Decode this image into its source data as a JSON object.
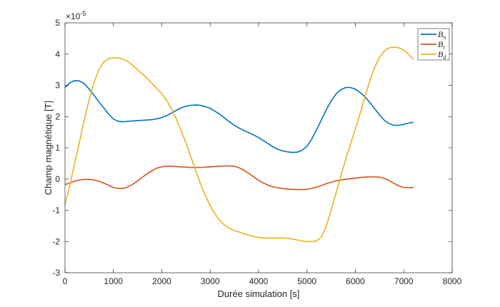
{
  "chart_data": {
    "type": "line",
    "title": "",
    "xlabel": "Durée simulation [s]",
    "ylabel": "Champ magnétique [T]",
    "xlim": [
      0,
      8000
    ],
    "ylim": [
      -3,
      5
    ],
    "y_exponent_label": "×10",
    "y_exponent_power": "-5",
    "x_ticks": [
      0,
      1000,
      2000,
      3000,
      4000,
      5000,
      6000,
      7000,
      8000
    ],
    "y_ticks": [
      -3,
      -2,
      -1,
      0,
      1,
      2,
      3,
      4,
      5
    ],
    "grid": false,
    "legend_position": "top-right",
    "series": [
      {
        "name": "Bn",
        "legend_base": "B",
        "legend_sub": "n",
        "color": "#0072BD",
        "x": [
          0,
          100,
          200,
          300,
          400,
          500,
          600,
          700,
          800,
          900,
          1000,
          1100,
          1200,
          1300,
          1400,
          1500,
          1600,
          1700,
          1800,
          1900,
          2000,
          2100,
          2200,
          2300,
          2400,
          2500,
          2600,
          2700,
          2800,
          2900,
          3000,
          3100,
          3200,
          3300,
          3400,
          3500,
          3600,
          3700,
          3800,
          3900,
          4000,
          4100,
          4200,
          4300,
          4400,
          4500,
          4600,
          4700,
          4800,
          4900,
          5000,
          5100,
          5200,
          5300,
          5400,
          5500,
          5600,
          5700,
          5800,
          5900,
          6000,
          6100,
          6200,
          6300,
          6400,
          6500,
          6600,
          6700,
          6800,
          6900,
          7000,
          7100,
          7200
        ],
        "y": [
          2.93,
          3.08,
          3.15,
          3.14,
          3.05,
          2.88,
          2.68,
          2.47,
          2.28,
          2.08,
          1.92,
          1.85,
          1.83,
          1.85,
          1.86,
          1.87,
          1.88,
          1.89,
          1.9,
          1.93,
          1.97,
          2.03,
          2.11,
          2.2,
          2.28,
          2.33,
          2.36,
          2.37,
          2.36,
          2.32,
          2.26,
          2.17,
          2.07,
          1.95,
          1.83,
          1.72,
          1.63,
          1.55,
          1.48,
          1.41,
          1.33,
          1.23,
          1.13,
          1.03,
          0.95,
          0.9,
          0.87,
          0.85,
          0.86,
          0.92,
          1.05,
          1.28,
          1.58,
          1.9,
          2.22,
          2.5,
          2.72,
          2.86,
          2.93,
          2.93,
          2.88,
          2.77,
          2.63,
          2.45,
          2.25,
          2.05,
          1.88,
          1.77,
          1.72,
          1.72,
          1.75,
          1.79,
          1.82
        ]
      },
      {
        "name": "Bt",
        "legend_base": "B",
        "legend_sub": "t",
        "color": "#D95319",
        "x": [
          0,
          100,
          200,
          300,
          400,
          500,
          600,
          700,
          800,
          900,
          1000,
          1100,
          1200,
          1300,
          1400,
          1500,
          1600,
          1700,
          1800,
          1900,
          2000,
          2100,
          2200,
          2300,
          2400,
          2500,
          2600,
          2700,
          2800,
          2900,
          3000,
          3100,
          3200,
          3300,
          3400,
          3500,
          3600,
          3700,
          3800,
          3900,
          4000,
          4100,
          4200,
          4300,
          4400,
          4500,
          4600,
          4700,
          4800,
          4900,
          5000,
          5100,
          5200,
          5300,
          5400,
          5500,
          5600,
          5700,
          5800,
          5900,
          6000,
          6100,
          6200,
          6300,
          6400,
          6500,
          6600,
          6700,
          6800,
          6900,
          7000,
          7100,
          7200
        ],
        "y": [
          -0.18,
          -0.13,
          -0.07,
          -0.03,
          -0.01,
          -0.01,
          -0.03,
          -0.07,
          -0.13,
          -0.2,
          -0.27,
          -0.3,
          -0.3,
          -0.25,
          -0.17,
          -0.06,
          0.06,
          0.17,
          0.27,
          0.35,
          0.39,
          0.41,
          0.41,
          0.4,
          0.39,
          0.38,
          0.37,
          0.37,
          0.37,
          0.38,
          0.39,
          0.4,
          0.41,
          0.42,
          0.42,
          0.41,
          0.36,
          0.28,
          0.18,
          0.07,
          -0.04,
          -0.13,
          -0.2,
          -0.25,
          -0.28,
          -0.3,
          -0.32,
          -0.33,
          -0.34,
          -0.34,
          -0.33,
          -0.3,
          -0.26,
          -0.21,
          -0.15,
          -0.1,
          -0.06,
          -0.03,
          -0.01,
          0.01,
          0.03,
          0.05,
          0.06,
          0.07,
          0.07,
          0.06,
          0.02,
          -0.05,
          -0.14,
          -0.22,
          -0.27,
          -0.28,
          -0.27
        ]
      },
      {
        "name": "Bd",
        "legend_base": "B",
        "legend_sub": "d",
        "color": "#EDB120",
        "x": [
          0,
          100,
          200,
          300,
          400,
          500,
          600,
          700,
          800,
          900,
          1000,
          1100,
          1200,
          1300,
          1400,
          1500,
          1600,
          1700,
          1800,
          1900,
          2000,
          2100,
          2200,
          2300,
          2400,
          2500,
          2600,
          2700,
          2800,
          2900,
          3000,
          3100,
          3200,
          3300,
          3400,
          3500,
          3600,
          3700,
          3800,
          3900,
          4000,
          4100,
          4200,
          4300,
          4400,
          4500,
          4600,
          4700,
          4800,
          4900,
          5000,
          5100,
          5200,
          5300,
          5400,
          5500,
          5600,
          5700,
          5800,
          5900,
          6000,
          6100,
          6200,
          6300,
          6400,
          6500,
          6600,
          6700,
          6800,
          6900,
          7000,
          7100,
          7200
        ],
        "y": [
          -0.82,
          -0.2,
          0.5,
          1.2,
          1.9,
          2.55,
          3.1,
          3.5,
          3.75,
          3.85,
          3.88,
          3.88,
          3.84,
          3.76,
          3.64,
          3.5,
          3.36,
          3.22,
          3.06,
          2.9,
          2.73,
          2.52,
          2.25,
          1.92,
          1.55,
          1.15,
          0.72,
          0.28,
          -0.15,
          -0.53,
          -0.86,
          -1.12,
          -1.33,
          -1.48,
          -1.58,
          -1.65,
          -1.7,
          -1.75,
          -1.8,
          -1.84,
          -1.87,
          -1.88,
          -1.89,
          -1.89,
          -1.89,
          -1.89,
          -1.9,
          -1.92,
          -1.95,
          -1.98,
          -2.0,
          -2.0,
          -1.98,
          -1.85,
          -1.5,
          -1.0,
          -0.45,
          0.1,
          0.62,
          1.12,
          1.6,
          2.1,
          2.65,
          3.15,
          3.58,
          3.9,
          4.1,
          4.2,
          4.22,
          4.2,
          4.13,
          4.0,
          3.83
        ]
      }
    ]
  }
}
